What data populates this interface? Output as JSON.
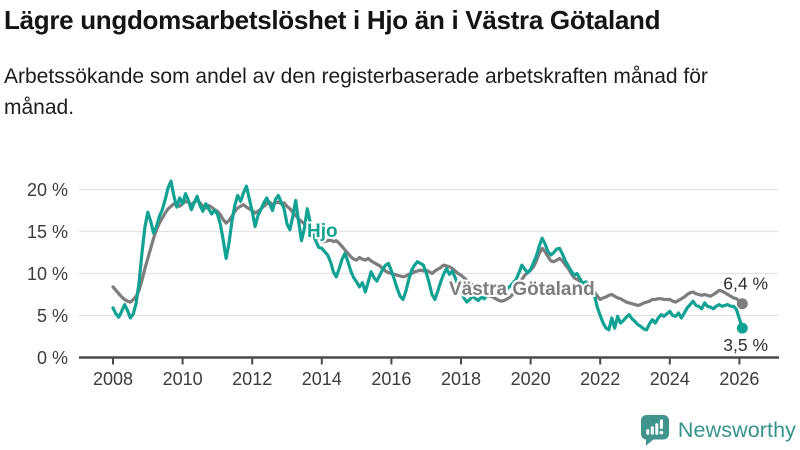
{
  "title": "Lägre ungdomsarbetslöshet i Hjo än i Västra Götaland",
  "subtitle": "Arbetssökande som andel av den registerbaserade arbetskraften månad för månad.",
  "branding": {
    "logo_text": "Newsworthy",
    "logo_color": "#3f948c"
  },
  "chart_data": {
    "type": "line",
    "title": "",
    "xlabel": "",
    "ylabel": "",
    "x_start_year": 2008,
    "x_step_months": 1,
    "x_end": "2026-02",
    "xlim": [
      2008,
      2026.4
    ],
    "ylim": [
      0,
      22
    ],
    "grid": true,
    "x_tick_labels": [
      "2008",
      "2010",
      "2012",
      "2014",
      "2016",
      "2018",
      "2020",
      "2022",
      "2024",
      "2026"
    ],
    "y_ticks": [
      {
        "value": 0,
        "label": "0 %"
      },
      {
        "value": 5,
        "label": "5 %"
      },
      {
        "value": 10,
        "label": "10 %"
      },
      {
        "value": 15,
        "label": "15 %"
      },
      {
        "value": 20,
        "label": "20 %"
      }
    ],
    "series": [
      {
        "name": "Västra Götaland",
        "color": "#7d7d7d",
        "end_label": "6,4 %",
        "end_value": 6.4,
        "values": [
          8.4,
          8.0,
          7.6,
          7.2,
          6.9,
          6.7,
          6.6,
          6.9,
          7.3,
          8.0,
          9.2,
          10.6,
          11.8,
          13.0,
          14.2,
          15.2,
          16.0,
          16.6,
          17.2,
          17.7,
          18.0,
          18.3,
          18.2,
          18.0,
          18.3,
          18.6,
          18.5,
          18.2,
          18.5,
          18.7,
          18.4,
          18.0,
          17.8,
          18.1,
          17.9,
          17.6,
          17.4,
          17.0,
          16.4,
          16.0,
          16.3,
          16.8,
          17.4,
          17.8,
          18.0,
          18.2,
          17.9,
          17.7,
          17.5,
          17.2,
          17.4,
          17.7,
          18.0,
          18.3,
          18.5,
          18.2,
          18.4,
          18.5,
          18.3,
          18.4,
          18.0,
          17.7,
          17.3,
          16.9,
          16.5,
          16.2,
          15.9,
          15.6,
          15.3,
          15.0,
          14.6,
          14.2,
          13.8,
          13.8,
          13.9,
          14.0,
          13.8,
          13.9,
          13.6,
          13.2,
          12.8,
          12.4,
          12.0,
          11.7,
          11.6,
          11.9,
          11.7,
          11.6,
          11.8,
          11.5,
          11.3,
          11.1,
          10.9,
          10.6,
          10.3,
          10.1,
          10.0,
          9.9,
          9.8,
          9.7,
          9.6,
          9.7,
          9.9,
          10.0,
          10.2,
          10.3,
          10.4,
          10.3,
          10.4,
          10.2,
          10.0,
          10.3,
          10.5,
          10.7,
          11.0,
          10.9,
          10.8,
          10.6,
          10.3,
          10.0,
          9.8,
          9.5,
          9.2,
          8.9,
          8.6,
          8.2,
          7.9,
          7.7,
          7.6,
          7.4,
          7.3,
          7.2,
          7.0,
          6.8,
          6.7,
          6.8,
          7.0,
          7.2,
          7.6,
          8.0,
          8.6,
          9.3,
          9.8,
          10.1,
          10.4,
          10.8,
          11.5,
          12.4,
          13.0,
          12.6,
          12.0,
          11.5,
          11.4,
          11.6,
          11.8,
          11.5,
          11.0,
          10.6,
          10.0,
          9.5,
          9.3,
          9.1,
          8.9,
          8.6,
          8.3,
          8.2,
          7.8,
          7.3,
          6.9,
          7.1,
          7.2,
          7.4,
          7.5,
          7.3,
          7.1,
          7.0,
          6.8,
          6.6,
          6.5,
          6.4,
          6.3,
          6.2,
          6.3,
          6.5,
          6.6,
          6.7,
          6.9,
          6.9,
          7.0,
          7.0,
          6.9,
          6.9,
          6.9,
          6.7,
          6.6,
          6.8,
          7.0,
          7.2,
          7.5,
          7.7,
          7.8,
          7.6,
          7.5,
          7.4,
          7.5,
          7.4,
          7.3,
          7.5,
          7.7,
          8.0,
          7.9,
          7.7,
          7.5,
          7.3,
          7.1,
          7.0,
          6.7,
          6.4
        ]
      },
      {
        "name": "Hjo",
        "color": "#11a294",
        "end_label": "3,5 %",
        "end_value": 3.5,
        "values": [
          5.9,
          5.2,
          4.8,
          5.5,
          6.3,
          5.6,
          4.7,
          5.2,
          6.5,
          9.0,
          12.5,
          15.5,
          17.3,
          16.2,
          14.8,
          15.6,
          16.8,
          17.6,
          18.8,
          20.2,
          21.0,
          19.2,
          17.9,
          19.0,
          18.3,
          19.5,
          18.7,
          17.6,
          18.4,
          19.2,
          18.1,
          17.4,
          18.3,
          17.7,
          17.1,
          17.5,
          17.1,
          15.9,
          14.0,
          11.8,
          13.6,
          16.2,
          18.1,
          19.3,
          18.6,
          19.6,
          20.4,
          18.9,
          17.4,
          15.6,
          16.9,
          17.6,
          18.4,
          19.0,
          18.3,
          17.5,
          18.8,
          19.3,
          18.5,
          17.7,
          15.9,
          15.2,
          16.8,
          18.7,
          16.2,
          13.9,
          15.4,
          17.7,
          16.1,
          14.7,
          13.8,
          13.1,
          13.0,
          12.6,
          12.2,
          11.4,
          10.2,
          9.6,
          10.6,
          11.7,
          12.4,
          11.4,
          10.3,
          9.5,
          9.0,
          8.4,
          8.9,
          7.8,
          9.0,
          10.2,
          9.5,
          9.1,
          9.8,
          10.5,
          11.0,
          11.2,
          10.3,
          9.3,
          8.2,
          7.3,
          6.9,
          7.9,
          9.3,
          10.4,
          11.0,
          11.4,
          11.2,
          11.0,
          10.1,
          8.9,
          7.5,
          6.9,
          7.9,
          9.0,
          9.9,
          10.6,
          9.9,
          10.3,
          9.5,
          8.6,
          7.9,
          7.1,
          6.6,
          6.9,
          7.3,
          7.0,
          6.8,
          7.2,
          7.0,
          7.4,
          7.7,
          7.8,
          7.8,
          7.5,
          7.7,
          8.0,
          8.2,
          8.5,
          8.9,
          9.3,
          10.1,
          11.0,
          10.5,
          10.1,
          10.5,
          11.3,
          12.1,
          13.3,
          14.2,
          13.5,
          12.6,
          12.2,
          12.5,
          12.9,
          13.0,
          12.3,
          11.5,
          10.9,
          10.3,
          9.8,
          10.0,
          9.4,
          8.8,
          9.0,
          8.7,
          8.5,
          7.4,
          6.0,
          5.0,
          4.1,
          3.5,
          3.3,
          4.7,
          3.5,
          4.9,
          4.1,
          4.4,
          4.8,
          5.1,
          4.6,
          4.3,
          3.9,
          3.7,
          3.4,
          3.3,
          4.0,
          4.5,
          4.1,
          4.7,
          5.1,
          4.9,
          5.2,
          5.5,
          5.0,
          4.9,
          5.3,
          4.7,
          5.3,
          5.9,
          6.3,
          6.7,
          6.2,
          6.1,
          5.8,
          6.5,
          6.1,
          6.0,
          5.8,
          6.1,
          6.3,
          6.1,
          6.2,
          6.3,
          6.1,
          6.1,
          5.7,
          4.6,
          3.5
        ]
      }
    ]
  }
}
